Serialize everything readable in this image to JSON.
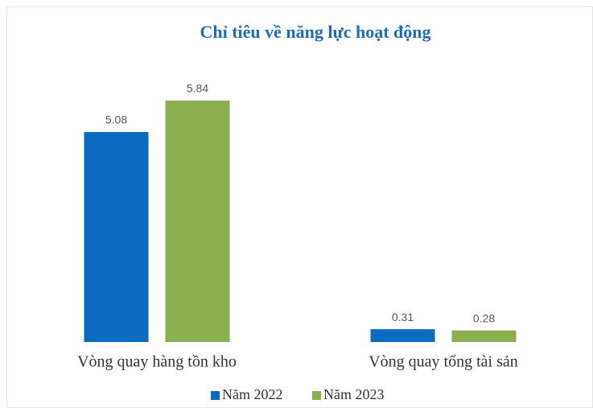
{
  "chart_data": {
    "type": "bar",
    "title": "Chỉ tiêu về năng lực hoạt động",
    "categories": [
      "Vòng quay hàng tồn kho",
      "Vòng quay tổng tài sản"
    ],
    "series": [
      {
        "name": "Năm 2022",
        "color": "#0b6cbf",
        "values": [
          5.08,
          0.31
        ]
      },
      {
        "name": "Năm 2023",
        "color": "#8cb050",
        "values": [
          5.84,
          0.28
        ]
      }
    ],
    "legend": "bottom"
  }
}
